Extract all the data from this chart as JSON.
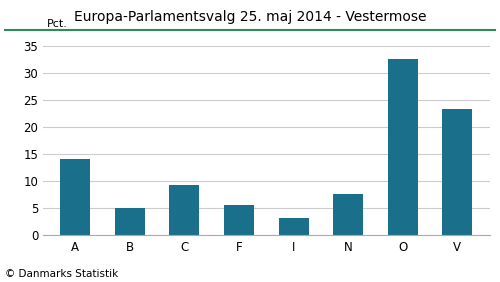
{
  "title": "Europa-Parlamentsvalg 25. maj 2014 - Vestermose",
  "categories": [
    "A",
    "B",
    "C",
    "F",
    "I",
    "N",
    "O",
    "V"
  ],
  "values": [
    14.2,
    5.1,
    9.4,
    5.6,
    3.3,
    7.7,
    32.7,
    23.3
  ],
  "bar_color": "#1a6f8a",
  "ylabel": "Pct.",
  "ylim": [
    0,
    37
  ],
  "yticks": [
    0,
    5,
    10,
    15,
    20,
    25,
    30,
    35
  ],
  "background_color": "#ffffff",
  "title_color": "#000000",
  "footer_text": "© Danmarks Statistik",
  "title_line_color": "#2e8b57",
  "grid_color": "#cccccc",
  "title_fontsize": 10,
  "ylabel_fontsize": 8,
  "tick_fontsize": 8.5,
  "footer_fontsize": 7.5
}
